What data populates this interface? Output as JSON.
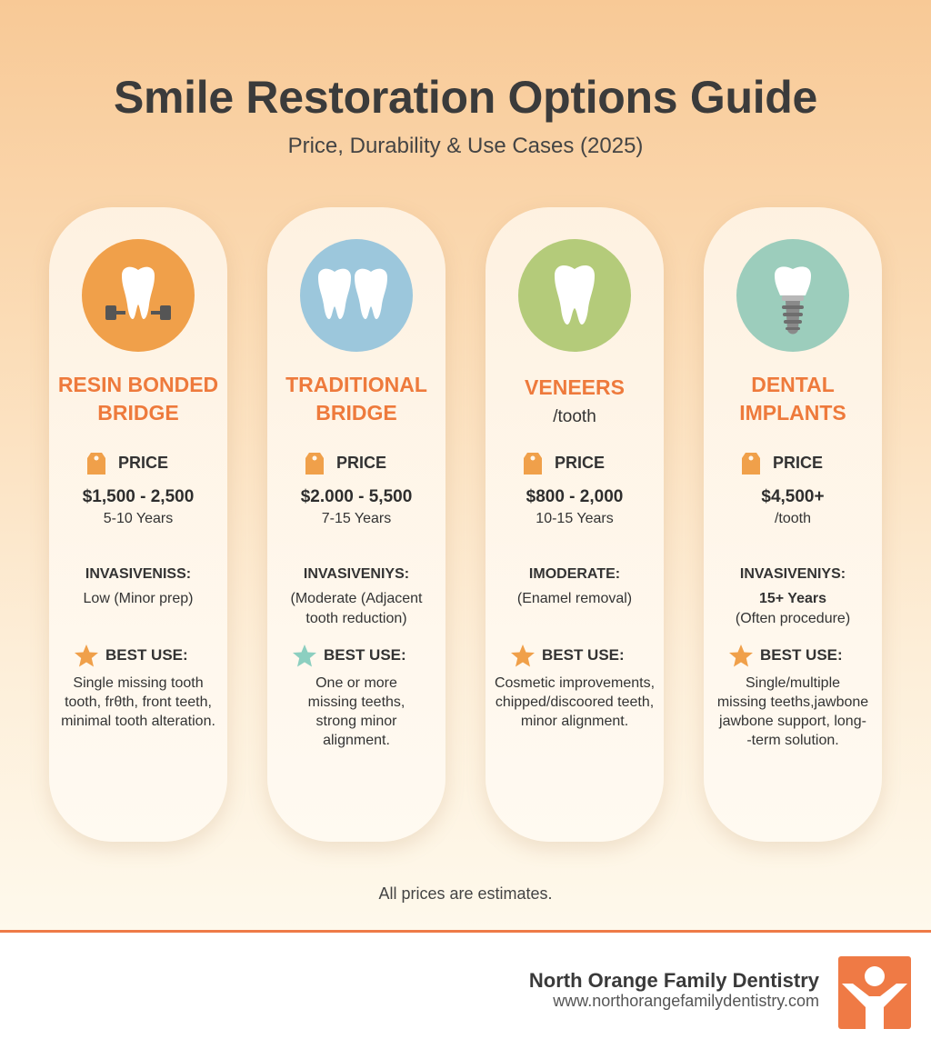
{
  "header": {
    "title": "Smile Restoration Options Guide",
    "subtitle": "Price, Durability & Use Cases (2025)"
  },
  "colors": {
    "accent": "#ee7a3c",
    "card1_circle": "#f0a04a",
    "card2_circle": "#9cc7dc",
    "card3_circle": "#b4cb7a",
    "card4_circle": "#9ccdbc"
  },
  "cards": [
    {
      "icon": "tooth-brace-icon",
      "name_line1": "RESIN BONDED",
      "name_line2": "BRIDGE",
      "name_sub": "",
      "price_label": "PRICE",
      "price": "$1,500 - 2,500",
      "years": "5-10 Years",
      "inv_label": "INVASIVENISS:",
      "inv_line1": "Low (Minor prep)",
      "inv_line2": "",
      "inv_line3": "",
      "best_label": "BEST USE:",
      "best_line1": "Single missing tooth",
      "best_line2": "tooth, frθth, front teeth,",
      "best_line3": "minimal tooth alteration.",
      "best_line4": ""
    },
    {
      "icon": "double-tooth-icon",
      "name_line1": "TRADITIONAL",
      "name_line2": "BRIDGE",
      "name_sub": "",
      "price_label": "PRICE",
      "price": "$2.000 - 5,500",
      "years": "7-15 Years",
      "inv_label": "INVASIVENIYS:",
      "inv_line1": "(Moderate (Adjacent",
      "inv_line2": "tooth reduction)",
      "inv_line3": "",
      "best_label": "BEST USE:",
      "best_line1": "One or more",
      "best_line2": "missing teeths,",
      "best_line3": "strong minor",
      "best_line4": "alignment."
    },
    {
      "icon": "tooth-icon",
      "name_line1": "VENEERS",
      "name_line2": "",
      "name_sub": "/tooth",
      "price_label": "PRICE",
      "price": "$800 - 2,000",
      "years": "10-15 Years",
      "inv_label": "IMODERATE:",
      "inv_line1": "(Enamel removal)",
      "inv_line2": "",
      "inv_line3": "",
      "best_label": "BEST USE:",
      "best_line1": "Cosmetic improvements,",
      "best_line2": "chipped/discoored teeth,",
      "best_line3": "minor alignment.",
      "best_line4": ""
    },
    {
      "icon": "dental-implant-icon",
      "name_line1": "DENTAL",
      "name_line2": "IMPLANTS",
      "name_sub": "",
      "price_label": "PRICE",
      "price": "$4,500+",
      "years": "/tooth",
      "inv_label": "INVASIVENIYS:",
      "inv_line1": "15+ Years",
      "inv_line2": "(Often procedure)",
      "inv_line3": "",
      "best_label": "BEST USE:",
      "best_line1": "Single/multiple",
      "best_line2": "missing teeths,jawbone",
      "best_line3": "jawbone support,  long-",
      "best_line4": "-term solution."
    }
  ],
  "footnote": "All prices are estimates.",
  "footer": {
    "brand": "North Orange Family Dentistry",
    "url": "www.northorangefamilydentistry.com"
  }
}
